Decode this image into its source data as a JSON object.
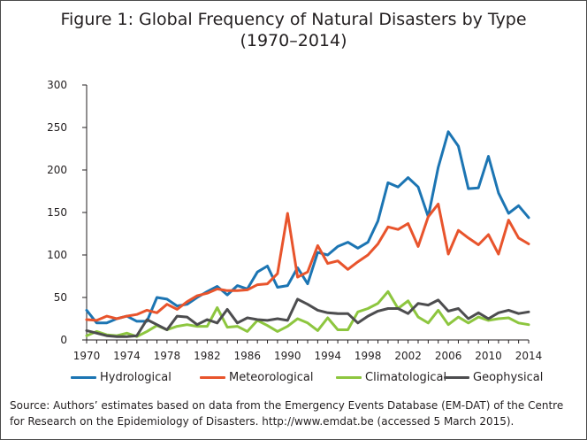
{
  "chart_data": {
    "type": "line",
    "title": "Figure 1: Global Frequency of Natural Disasters by Type",
    "subtitle": "(1970–2014)",
    "xlabel": "",
    "ylabel": "",
    "ylim": [
      0,
      300
    ],
    "yticks": [
      "0",
      "50",
      "100",
      "150",
      "200",
      "250",
      "300"
    ],
    "xlim": [
      1970,
      2014
    ],
    "xticks": [
      "1970",
      "1974",
      "1978",
      "1982",
      "1986",
      "1990",
      "1994",
      "1998",
      "2002",
      "2006",
      "2010",
      "2014"
    ],
    "grid": false,
    "legend_position": "bottom",
    "x": [
      1970,
      1971,
      1972,
      1973,
      1974,
      1975,
      1976,
      1977,
      1978,
      1979,
      1980,
      1981,
      1982,
      1983,
      1984,
      1985,
      1986,
      1987,
      1988,
      1989,
      1990,
      1991,
      1992,
      1993,
      1994,
      1995,
      1996,
      1997,
      1998,
      1999,
      2000,
      2001,
      2002,
      2003,
      2004,
      2005,
      2006,
      2007,
      2008,
      2009,
      2010,
      2011,
      2012,
      2013,
      2014
    ],
    "series": [
      {
        "name": "Hydrological",
        "color": "#1c75b3",
        "values": [
          35,
          20,
          20,
          25,
          28,
          22,
          22,
          50,
          48,
          40,
          42,
          50,
          57,
          63,
          53,
          64,
          60,
          80,
          87,
          62,
          64,
          85,
          66,
          103,
          100,
          110,
          115,
          108,
          115,
          140,
          185,
          180,
          191,
          180,
          145,
          203,
          245,
          228,
          178,
          179,
          216,
          173,
          149,
          158,
          144
        ]
      },
      {
        "name": "Meteorological",
        "color": "#e8542c",
        "values": [
          24,
          23,
          28,
          25,
          28,
          30,
          35,
          32,
          42,
          36,
          45,
          52,
          55,
          60,
          58,
          58,
          59,
          65,
          66,
          78,
          149,
          74,
          80,
          111,
          90,
          93,
          83,
          92,
          100,
          113,
          133,
          130,
          137,
          110,
          145,
          160,
          101,
          129,
          120,
          112,
          124,
          101,
          141,
          120,
          113
        ]
      },
      {
        "name": "Climatological",
        "color": "#8dc63f",
        "values": [
          5,
          10,
          6,
          5,
          8,
          4,
          10,
          17,
          12,
          16,
          18,
          16,
          16,
          38,
          15,
          16,
          10,
          23,
          17,
          10,
          16,
          25,
          20,
          11,
          26,
          12,
          12,
          33,
          37,
          43,
          57,
          37,
          46,
          27,
          20,
          35,
          18,
          27,
          20,
          27,
          23,
          25,
          26,
          20,
          18
        ]
      },
      {
        "name": "Geophysical",
        "color": "#4d4d4f",
        "values": [
          11,
          8,
          5,
          4,
          4,
          5,
          24,
          18,
          12,
          28,
          27,
          18,
          24,
          20,
          36,
          20,
          26,
          24,
          23,
          25,
          23,
          48,
          42,
          35,
          32,
          31,
          31,
          20,
          28,
          34,
          37,
          37,
          31,
          43,
          41,
          47,
          34,
          37,
          25,
          32,
          25,
          32,
          35,
          31,
          33
        ]
      }
    ]
  },
  "source_note": "Source: Authors’ estimates based on data from the Emergency Events Database (EM-DAT) of the Centre for Research on the Epidemiology of Disasters. http://www.emdat.be (accessed 5 March 2015)."
}
